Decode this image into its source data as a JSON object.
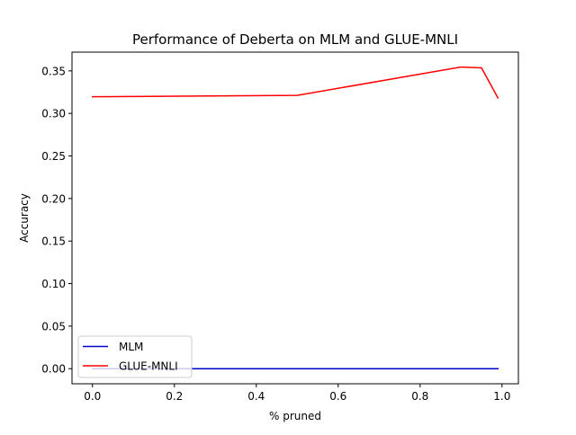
{
  "chart_data": {
    "type": "line",
    "title": "Performance of Deberta on MLM and GLUE-MNLI",
    "xlabel": "% pruned",
    "ylabel": "Accuracy",
    "xlim": [
      -0.05,
      1.04
    ],
    "ylim": [
      -0.0177,
      0.372
    ],
    "xticks": [
      0.0,
      0.2,
      0.4,
      0.6,
      0.8,
      1.0
    ],
    "xtick_labels": [
      "0.0",
      "0.2",
      "0.4",
      "0.6",
      "0.8",
      "1.0"
    ],
    "yticks": [
      0.0,
      0.05,
      0.1,
      0.15,
      0.2,
      0.25,
      0.3,
      0.35
    ],
    "ytick_labels": [
      "0.00",
      "0.05",
      "0.10",
      "0.15",
      "0.20",
      "0.25",
      "0.30",
      "0.35"
    ],
    "grid": false,
    "legend_position": "lower-left",
    "series": [
      {
        "name": "MLM",
        "color": "#0000cc",
        "x": [
          0.0,
          0.5,
          0.9,
          0.95,
          0.99
        ],
        "y": [
          0.0,
          0.0,
          0.0,
          0.0,
          0.0
        ]
      },
      {
        "name": "GLUE-MNLI",
        "color": "#ff0000",
        "x": [
          0.0,
          0.5,
          0.9,
          0.95,
          0.99
        ],
        "y": [
          0.3196,
          0.3212,
          0.3545,
          0.3535,
          0.3182
        ]
      }
    ]
  }
}
